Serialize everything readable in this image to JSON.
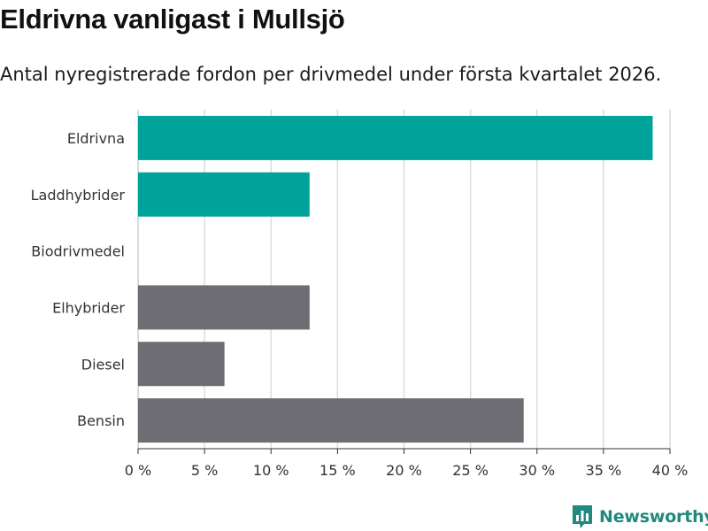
{
  "header": {
    "title": "Eldrivna vanligast i Mullsjö",
    "subtitle": "Antal nyregistrerade fordon per drivmedel under första kvartalet 2026."
  },
  "chart_data": {
    "type": "bar",
    "orientation": "horizontal",
    "categories": [
      "Eldrivna",
      "Laddhybrider",
      "Biodrivmedel",
      "Elhybrider",
      "Diesel",
      "Bensin"
    ],
    "values": [
      38.7,
      12.9,
      0,
      12.9,
      6.5,
      29.0
    ],
    "bar_colors": [
      "#00a39a",
      "#00a39a",
      "#00a39a",
      "#6e6d74",
      "#6e6d74",
      "#6e6d74"
    ],
    "xlim": [
      0,
      40
    ],
    "xticks": [
      0,
      5,
      10,
      15,
      20,
      25,
      30,
      35,
      40
    ],
    "xtick_labels": [
      "0 %",
      "5 %",
      "10 %",
      "15 %",
      "20 %",
      "25 %",
      "30 %",
      "35 %",
      "40 %"
    ],
    "grid": true,
    "title": "Eldrivna vanligast i Mullsjö",
    "xlabel": "",
    "ylabel": ""
  },
  "footer": {
    "brand_name": "Newsworthy",
    "brand_icon": "bar-chart-icon",
    "brand_color": "#21897e"
  }
}
